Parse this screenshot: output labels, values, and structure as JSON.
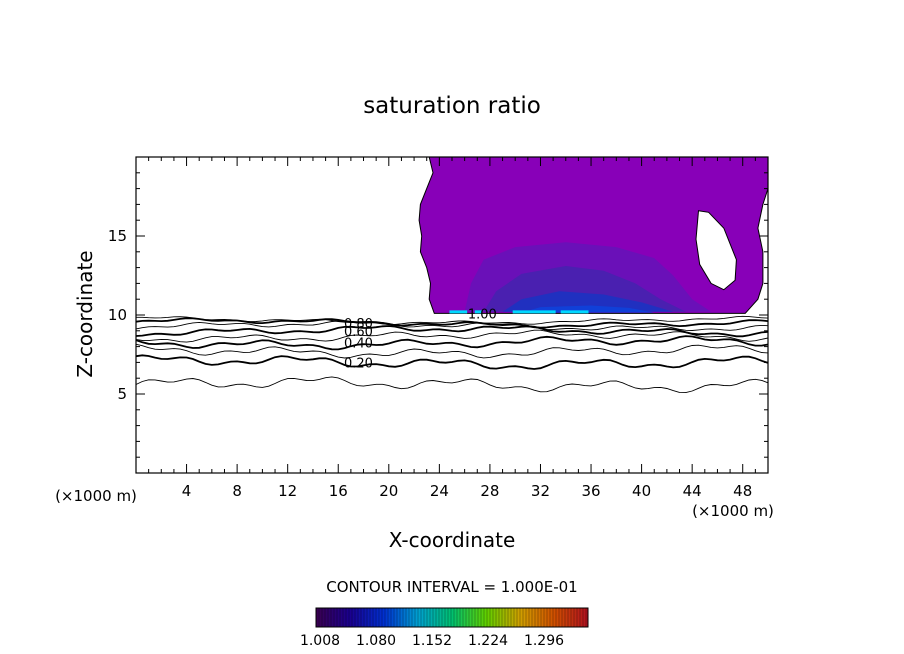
{
  "chart_data": {
    "type": "contour",
    "title": "saturation ratio",
    "xlabel": "X-coordinate",
    "ylabel": "Z-coordinate",
    "x_unit_left": "(×1000 m)",
    "x_unit_right": "(×1000 m)",
    "xlim": [
      0,
      50
    ],
    "ylim": [
      0,
      20
    ],
    "x_ticks": [
      4,
      8,
      12,
      16,
      20,
      24,
      28,
      32,
      36,
      40,
      44,
      48
    ],
    "y_ticks": [
      5,
      10,
      15
    ],
    "contour_interval_text": "CONTOUR INTERVAL = 1.000E-01",
    "line_contours": [
      {
        "label": "",
        "level": 0.1,
        "base": 5.6,
        "amp": 0.25,
        "heavy": false
      },
      {
        "label": "0.20",
        "level": 0.2,
        "base": 7.0,
        "amp": 0.22,
        "heavy": true
      },
      {
        "label": "",
        "level": 0.3,
        "base": 7.7,
        "amp": 0.2,
        "heavy": false
      },
      {
        "label": "0.40",
        "level": 0.4,
        "base": 8.25,
        "amp": 0.18,
        "heavy": true
      },
      {
        "label": "",
        "level": 0.5,
        "base": 8.65,
        "amp": 0.16,
        "heavy": false
      },
      {
        "label": "0.60",
        "level": 0.6,
        "base": 9.0,
        "amp": 0.14,
        "heavy": true
      },
      {
        "label": "",
        "level": 0.7,
        "base": 9.3,
        "amp": 0.12,
        "heavy": false
      },
      {
        "label": "0.80",
        "level": 0.8,
        "base": 9.5,
        "amp": 0.1,
        "heavy": true
      },
      {
        "label": "",
        "level": 0.9,
        "base": 9.65,
        "amp": 0.08,
        "heavy": false
      }
    ],
    "peak_label": "1.00",
    "colorbar": {
      "tick_labels": [
        "1.008",
        "1.080",
        "1.152",
        "1.224",
        "1.296"
      ],
      "colors": [
        "#3a0050",
        "#1a0090",
        "#0030d0",
        "#00a0d0",
        "#00c070",
        "#60d000",
        "#d0a000",
        "#d05000",
        "#b01020"
      ]
    },
    "fill_colors": {
      "outer": "#8800b8",
      "mid": "#6a10b8",
      "inner": "#4a20b0",
      "deep": "#2030c0",
      "core": "#1040d8",
      "cyan": "#00d8ff"
    }
  }
}
